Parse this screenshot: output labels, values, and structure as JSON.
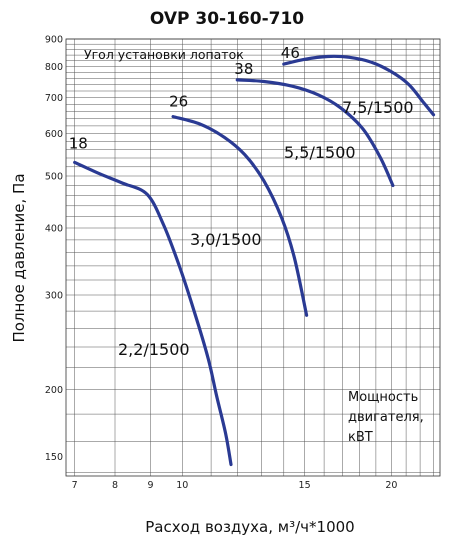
{
  "chart_data": {
    "type": "line",
    "title": "OVP 30-160-710",
    "xlabel": "Расход воздуха, м³/ч*1000",
    "ylabel": "Полное давление, Па",
    "x_scale": "log",
    "y_scale": "log",
    "xlim": [
      6.8,
      23.5
    ],
    "ylim": [
      138,
      900
    ],
    "x_ticks": [
      "7",
      "8",
      "9",
      "10",
      "15",
      "20"
    ],
    "y_ticks": [
      "900",
      "800",
      "700",
      "600",
      "500",
      "400",
      "300",
      "200",
      "150"
    ],
    "grid": true,
    "legend_title": "Угол установки лопаток",
    "power_label_note": [
      "Мощность",
      "двигателя,",
      "кВТ"
    ],
    "series": [
      {
        "name": "18",
        "power_label": "2,2/1500",
        "points": [
          [
            7.0,
            530
          ],
          [
            7.6,
            505
          ],
          [
            8.2,
            485
          ],
          [
            8.9,
            462
          ],
          [
            9.4,
            405
          ],
          [
            9.9,
            340
          ],
          [
            10.4,
            280
          ],
          [
            10.9,
            228
          ],
          [
            11.2,
            195
          ],
          [
            11.55,
            165
          ],
          [
            11.75,
            145
          ]
        ]
      },
      {
        "name": "26",
        "power_label": "3,0/1500",
        "points": [
          [
            9.7,
            645
          ],
          [
            10.6,
            625
          ],
          [
            11.5,
            590
          ],
          [
            12.3,
            548
          ],
          [
            13.1,
            490
          ],
          [
            13.9,
            418
          ],
          [
            14.5,
            352
          ],
          [
            15.1,
            275
          ]
        ]
      },
      {
        "name": "38",
        "power_label": "5,5/1500",
        "points": [
          [
            12.0,
            755
          ],
          [
            13.1,
            750
          ],
          [
            14.4,
            735
          ],
          [
            15.7,
            708
          ],
          [
            16.9,
            670
          ],
          [
            18.2,
            612
          ],
          [
            19.3,
            540
          ],
          [
            20.1,
            480
          ]
        ]
      },
      {
        "name": "46",
        "power_label": "7,5/1500",
        "points": [
          [
            14.0,
            808
          ],
          [
            15.0,
            825
          ],
          [
            16.2,
            835
          ],
          [
            17.4,
            832
          ],
          [
            18.7,
            815
          ],
          [
            20.0,
            782
          ],
          [
            21.2,
            740
          ],
          [
            22.2,
            688
          ],
          [
            23.0,
            650
          ]
        ]
      }
    ]
  }
}
